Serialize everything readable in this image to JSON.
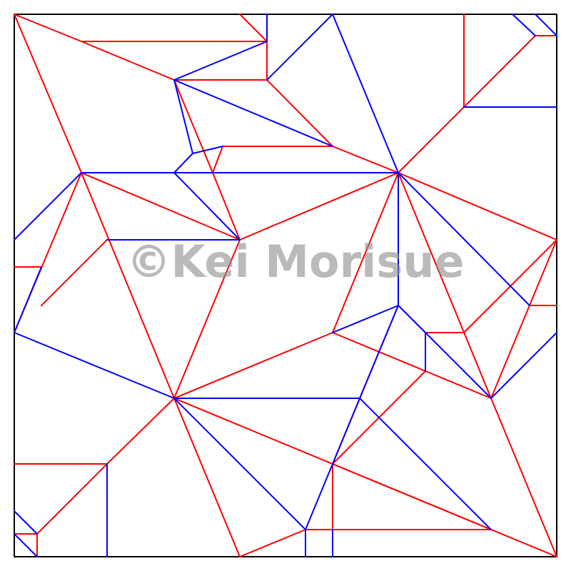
{
  "watermark": "©Kei Morisue",
  "colors": {
    "mountain": "#ff0000",
    "valley": "#0000ff",
    "border": "#000000",
    "background": "#ffffff"
  }
}
